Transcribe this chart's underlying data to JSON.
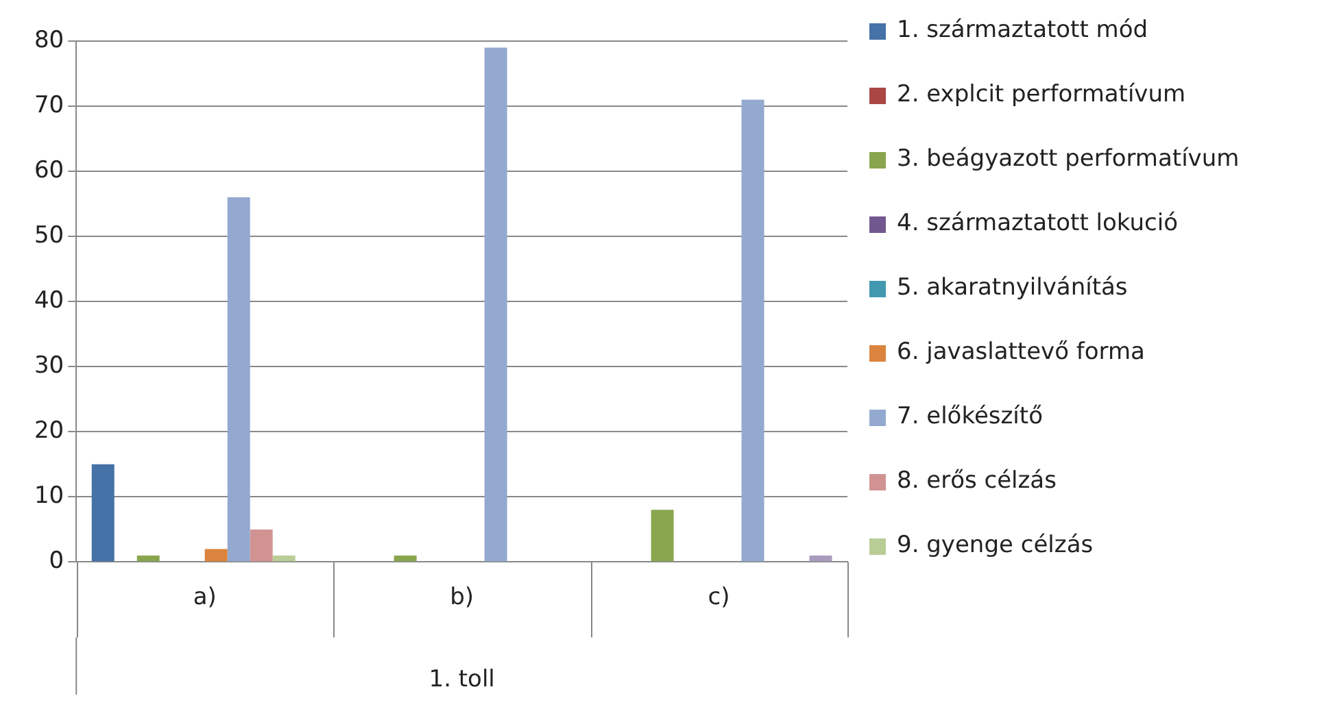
{
  "chart_data": {
    "type": "bar",
    "categories": [
      "a)",
      "b)",
      "c)"
    ],
    "xlabel": "1. toll",
    "ylim": [
      0,
      80
    ],
    "yticks": [
      0,
      10,
      20,
      30,
      40,
      50,
      60,
      70,
      80
    ],
    "grid": "y",
    "legend": "right",
    "series": [
      {
        "name": "1. származtatott mód",
        "color": "#4572a7",
        "values": [
          15,
          0,
          0
        ]
      },
      {
        "name": "2. explcit performatívum",
        "color": "#aa4643",
        "values": [
          0,
          0,
          0
        ]
      },
      {
        "name": "3. beágyazott performatívum",
        "color": "#89a54e",
        "values": [
          1,
          1,
          8
        ]
      },
      {
        "name": "4. származtatott lokució",
        "color": "#71588f",
        "values": [
          0,
          0,
          0
        ]
      },
      {
        "name": "5. akaratnyilvánítás",
        "color": "#4198af",
        "values": [
          0,
          0,
          0
        ]
      },
      {
        "name": "6. javaslattevő forma",
        "color": "#db843d",
        "values": [
          2,
          0,
          0
        ]
      },
      {
        "name": "7. előkészítő",
        "color": "#93a9cf",
        "values": [
          56,
          79,
          71
        ]
      },
      {
        "name": "8. erős célzás",
        "color": "#d19392",
        "values": [
          5,
          0,
          0
        ]
      },
      {
        "name": "9. gyenge célzás",
        "color": "#b9cd96",
        "values": [
          1,
          0,
          0
        ]
      },
      {
        "color": "#a99bbd",
        "values": [
          0,
          0,
          1
        ]
      }
    ]
  }
}
